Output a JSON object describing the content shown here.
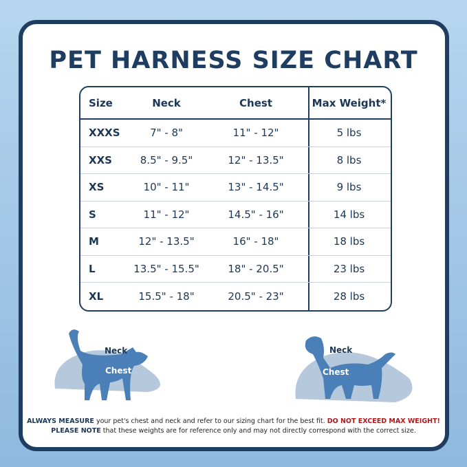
{
  "title": "PET HARNESS SIZE CHART",
  "table": {
    "headers": [
      "Size",
      "Neck",
      "Chest",
      "Max Weight*"
    ],
    "rows": [
      [
        "XXXS",
        "7\" - 8\"",
        "11\" - 12\"",
        "5 lbs"
      ],
      [
        "XXS",
        "8.5\" - 9.5\"",
        "12\" - 13.5\"",
        "8 lbs"
      ],
      [
        "XS",
        "10\" - 11\"",
        "13\" - 14.5\"",
        "9 lbs"
      ],
      [
        "S",
        "11\" - 12\"",
        "14.5\" - 16\"",
        "14 lbs"
      ],
      [
        "M",
        "12\" - 13.5\"",
        "16\" - 18\"",
        "18 lbs"
      ],
      [
        "L",
        "13.5\" - 15.5\"",
        "18\" - 20.5\"",
        "23 lbs"
      ],
      [
        "XL",
        "15.5\" - 18\"",
        "20.5\" - 23\"",
        "28 lbs"
      ]
    ]
  },
  "cat": {
    "neck": "Neck",
    "chest": "Chest"
  },
  "dog": {
    "neck": "Neck",
    "chest": "Chest"
  },
  "footer": {
    "b1": "ALWAYS MEASURE",
    "t1": " your pet's chest and neck and refer  to our sizing chart for the best fit. ",
    "red": "DO NOT EXCEED MAX WEIGHT!",
    "b2": "PLEASE NOTE",
    "t2": " that these weights are for reference only and may not directly correspond with the correct size."
  },
  "colors": {
    "navy": "#1f3d60",
    "pet": "#4a7fb8",
    "shape": "#b6c9dc",
    "warning": "#b3161b"
  }
}
